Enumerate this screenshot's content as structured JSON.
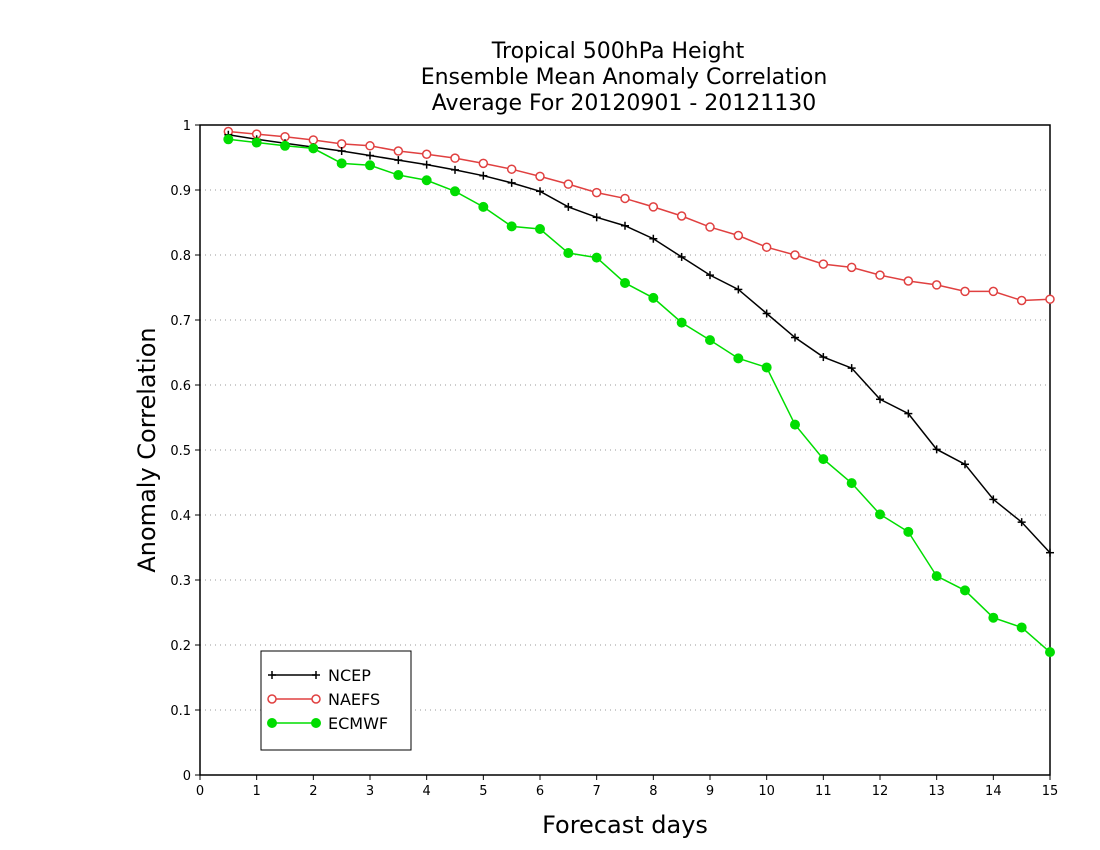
{
  "chart_data": {
    "type": "line",
    "title_lines": [
      "Tropical 500hPa Height",
      "Ensemble Mean Anomaly Correlation",
      "Average For 20120901 - 20121130"
    ],
    "xlabel": "Forecast days",
    "ylabel": "Anomaly Correlation",
    "xlim": [
      0,
      15
    ],
    "ylim": [
      0,
      1
    ],
    "x_ticks": [
      "0",
      "1",
      "2",
      "3",
      "4",
      "5",
      "6",
      "7",
      "8",
      "9",
      "10",
      "11",
      "12",
      "13",
      "14",
      "15"
    ],
    "y_ticks": [
      "0",
      "0.1",
      "0.2",
      "0.3",
      "0.4",
      "0.5",
      "0.6",
      "0.7",
      "0.8",
      "0.9",
      "1"
    ],
    "grid": "horizontal dotted",
    "legend_position": "bottom-left",
    "x": [
      0.5,
      1,
      1.5,
      2,
      2.5,
      3,
      3.5,
      4,
      4.5,
      5,
      5.5,
      6,
      6.5,
      7,
      7.5,
      8,
      8.5,
      9,
      9.5,
      10,
      10.5,
      11,
      11.5,
      12,
      12.5,
      13,
      13.5,
      14,
      14.5,
      15
    ],
    "series": [
      {
        "name": "NCEP",
        "color": "#000000",
        "marker": "plus",
        "values": [
          0.985,
          0.978,
          0.972,
          0.966,
          0.96,
          0.953,
          0.946,
          0.939,
          0.931,
          0.922,
          0.911,
          0.898,
          0.874,
          0.858,
          0.845,
          0.825,
          0.797,
          0.769,
          0.747,
          0.71,
          0.673,
          0.643,
          0.626,
          0.578,
          0.556,
          0.501,
          0.478,
          0.424,
          0.389,
          0.342
        ]
      },
      {
        "name": "NAEFS",
        "color": "#e04040",
        "marker": "open-circle",
        "values": [
          0.99,
          0.986,
          0.982,
          0.977,
          0.971,
          0.968,
          0.96,
          0.955,
          0.949,
          0.941,
          0.932,
          0.921,
          0.909,
          0.896,
          0.887,
          0.874,
          0.86,
          0.843,
          0.83,
          0.812,
          0.8,
          0.786,
          0.781,
          0.769,
          0.76,
          0.754,
          0.744,
          0.744,
          0.73,
          0.732
        ]
      },
      {
        "name": "ECMWF",
        "color": "#00dd00",
        "marker": "filled-circle",
        "values": [
          0.978,
          0.973,
          0.968,
          0.964,
          0.941,
          0.938,
          0.923,
          0.915,
          0.898,
          0.874,
          0.844,
          0.84,
          0.803,
          0.796,
          0.757,
          0.734,
          0.696,
          0.669,
          0.641,
          0.627,
          0.539,
          0.486,
          0.449,
          0.401,
          0.374,
          0.306,
          0.284,
          0.242,
          0.227,
          0.189
        ]
      }
    ]
  }
}
